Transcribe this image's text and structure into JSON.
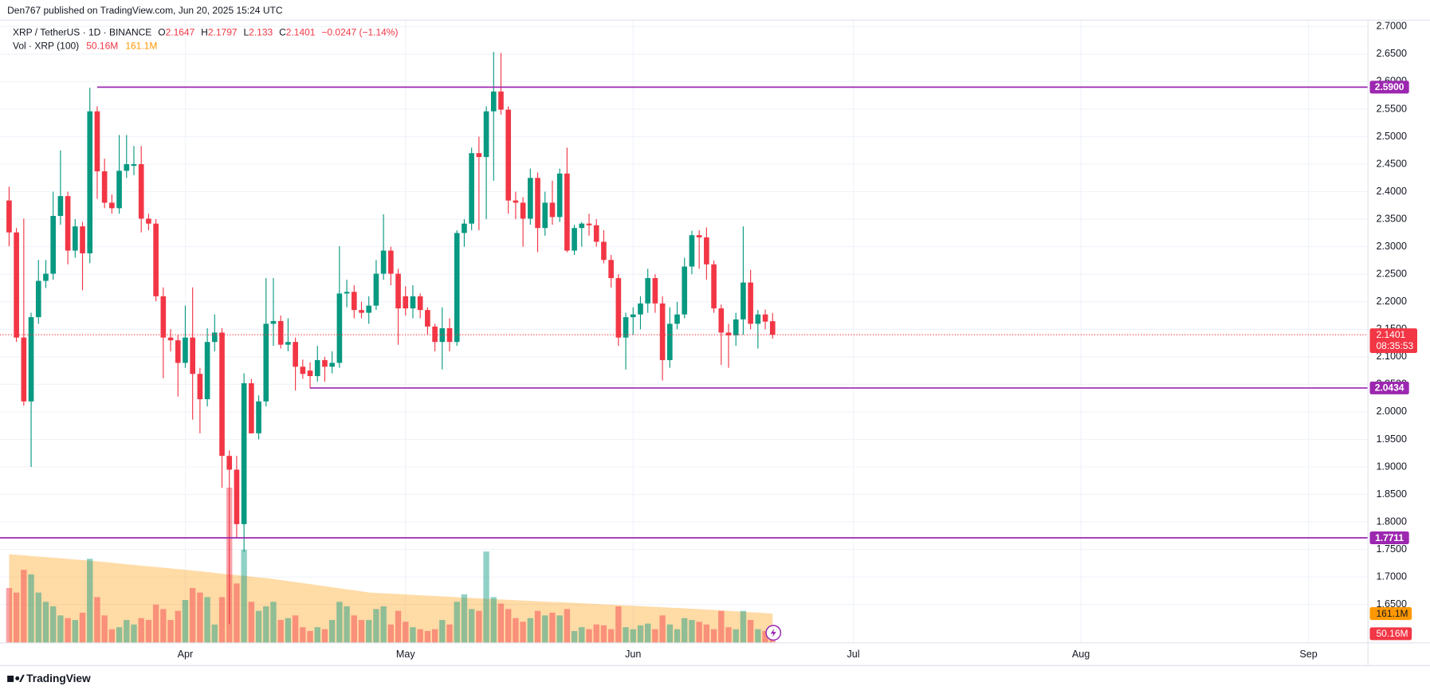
{
  "header": {
    "published": "Den767 published on TradingView.com, Jun 20, 2025 15:24 UTC",
    "brand": "TradingView"
  },
  "chart_data": {
    "type": "candlestick",
    "symbol": "XRP / TetherUS · 1D · BINANCE",
    "ohlc_keys": [
      "O",
      "H",
      "L",
      "C"
    ],
    "change": "−0.0247 (−1.14%)",
    "open": [
      2.384,
      2.326,
      2.135,
      2.019,
      2.172,
      2.238,
      2.251,
      2.356,
      2.392,
      2.293,
      2.337,
      2.288,
      2.546,
      2.437,
      2.38,
      2.37,
      2.438,
      2.447,
      2.45,
      2.351,
      2.342,
      2.21,
      2.135,
      2.13,
      2.089,
      2.135,
      2.069,
      2.023,
      2.127,
      2.144,
      1.92,
      1.895,
      1.796,
      2.052,
      1.961,
      2.019,
      2.16,
      2.165,
      2.122,
      2.127,
      2.082,
      2.075,
      2.065,
      2.094,
      2.082,
      2.089,
      2.215,
      2.218,
      2.185,
      2.18,
      2.193,
      2.251,
      2.293,
      2.251,
      2.21,
      2.188,
      2.21,
      2.185,
      2.155,
      2.127,
      2.152,
      2.127,
      2.325,
      2.342,
      2.47,
      2.463,
      2.546,
      2.582,
      2.549,
      2.384,
      2.38,
      2.351,
      2.425,
      2.334,
      2.38,
      2.354,
      2.433,
      2.293,
      2.334,
      2.342,
      2.339,
      2.309,
      2.276,
      2.243,
      2.135,
      2.172,
      2.177,
      2.197,
      2.243,
      2.197,
      2.094,
      2.16,
      2.177,
      2.264,
      2.321,
      2.317,
      2.268,
      2.188,
      2.144,
      2.139,
      2.168,
      2.235,
      2.16,
      2.177,
      2.1647
    ],
    "high": [
      2.409,
      2.334,
      2.351,
      2.18,
      2.276,
      2.276,
      2.4,
      2.475,
      2.4,
      2.35,
      2.345,
      2.589,
      2.555,
      2.46,
      2.395,
      2.503,
      2.503,
      2.483,
      2.483,
      2.36,
      2.35,
      2.226,
      2.15,
      2.14,
      2.193,
      2.226,
      2.08,
      2.152,
      2.177,
      2.152,
      1.93,
      1.92,
      2.07,
      2.06,
      2.03,
      2.243,
      2.243,
      2.175,
      2.17,
      2.135,
      2.095,
      2.09,
      2.12,
      2.1,
      2.11,
      2.301,
      2.24,
      2.23,
      2.2,
      2.21,
      2.276,
      2.359,
      2.3,
      2.26,
      2.228,
      2.23,
      2.215,
      2.19,
      2.16,
      2.19,
      2.17,
      2.33,
      2.35,
      2.48,
      2.5,
      2.555,
      2.654,
      2.652,
      2.555,
      2.4,
      2.39,
      2.442,
      2.435,
      2.4,
      2.42,
      2.442,
      2.48,
      2.34,
      2.345,
      2.36,
      2.35,
      2.33,
      2.285,
      2.25,
      2.18,
      2.19,
      2.21,
      2.26,
      2.25,
      2.21,
      2.19,
      2.2,
      2.28,
      2.329,
      2.33,
      2.335,
      2.275,
      2.195,
      2.16,
      2.18,
      2.337,
      2.258,
      2.185,
      2.186,
      2.1797
    ],
    "low": [
      2.301,
      2.127,
      2.011,
      1.9,
      2.16,
      2.225,
      2.24,
      2.34,
      2.268,
      2.28,
      2.221,
      2.27,
      2.387,
      2.37,
      2.36,
      2.36,
      2.425,
      2.43,
      2.326,
      2.33,
      2.201,
      2.061,
      2.11,
      2.028,
      2.08,
      1.986,
      1.961,
      2.01,
      2.11,
      1.862,
      1.614,
      1.771,
      1.746,
      1.961,
      1.95,
      2.01,
      2.12,
      2.115,
      2.11,
      2.039,
      2.06,
      2.043,
      2.055,
      2.055,
      2.07,
      2.08,
      2.19,
      2.17,
      2.17,
      2.16,
      2.185,
      2.24,
      2.23,
      2.122,
      2.175,
      2.17,
      2.17,
      2.14,
      2.11,
      2.077,
      2.11,
      2.12,
      2.3,
      2.33,
      2.33,
      2.35,
      2.42,
      2.54,
      2.36,
      2.35,
      2.3,
      2.34,
      2.29,
      2.32,
      2.34,
      2.345,
      2.29,
      2.285,
      2.3,
      2.32,
      2.3,
      2.27,
      2.226,
      2.12,
      2.077,
      2.14,
      2.15,
      2.18,
      2.18,
      2.057,
      2.08,
      2.15,
      2.17,
      2.25,
      2.26,
      2.24,
      2.18,
      2.085,
      2.08,
      2.12,
      2.14,
      2.15,
      2.115,
      2.15,
      2.133
    ],
    "close": [
      2.326,
      2.135,
      2.019,
      2.172,
      2.238,
      2.251,
      2.356,
      2.392,
      2.293,
      2.337,
      2.288,
      2.546,
      2.437,
      2.38,
      2.37,
      2.438,
      2.45,
      2.45,
      2.351,
      2.342,
      2.21,
      2.135,
      2.13,
      2.089,
      2.135,
      2.069,
      2.023,
      2.127,
      2.144,
      1.92,
      1.895,
      1.796,
      2.052,
      1.961,
      2.019,
      2.16,
      2.165,
      2.122,
      2.127,
      2.082,
      2.069,
      2.065,
      2.094,
      2.082,
      2.089,
      2.215,
      2.218,
      2.185,
      2.18,
      2.193,
      2.251,
      2.293,
      2.251,
      2.188,
      2.188,
      2.21,
      2.185,
      2.155,
      2.127,
      2.152,
      2.127,
      2.325,
      2.342,
      2.47,
      2.463,
      2.546,
      2.582,
      2.549,
      2.384,
      2.38,
      2.351,
      2.425,
      2.334,
      2.38,
      2.354,
      2.433,
      2.293,
      2.334,
      2.342,
      2.339,
      2.309,
      2.276,
      2.243,
      2.135,
      2.172,
      2.177,
      2.197,
      2.243,
      2.197,
      2.094,
      2.16,
      2.177,
      2.264,
      2.321,
      2.317,
      2.268,
      2.188,
      2.144,
      2.139,
      2.168,
      2.235,
      2.16,
      2.177,
      2.164,
      2.1401
    ],
    "up_color": "#089981",
    "down_color": "#f23645",
    "xlim": [
      -1.24,
      185.1
    ],
    "xticks": [
      {
        "value": 24,
        "label": "Apr"
      },
      {
        "value": 54,
        "label": "May"
      },
      {
        "value": 85,
        "label": "Jun"
      },
      {
        "value": 115,
        "label": "Jul"
      },
      {
        "value": 146,
        "label": "Aug"
      },
      {
        "value": 177,
        "label": "Sep"
      }
    ],
    "ylim": [
      1.5804,
      2.7116
    ],
    "yticks": [
      {
        "value": 1.65,
        "label": "1.6500"
      },
      {
        "value": 1.7,
        "label": "1.7000"
      },
      {
        "value": 1.75,
        "label": "1.7500"
      },
      {
        "value": 1.8,
        "label": "1.8000"
      },
      {
        "value": 1.85,
        "label": "1.8500"
      },
      {
        "value": 1.9,
        "label": "1.9000"
      },
      {
        "value": 1.95,
        "label": "1.9500"
      },
      {
        "value": 2.0,
        "label": "2.0000"
      },
      {
        "value": 2.05,
        "label": "2.0500"
      },
      {
        "value": 2.1,
        "label": "2.1000"
      },
      {
        "value": 2.15,
        "label": "2.1500"
      },
      {
        "value": 2.2,
        "label": "2.2000"
      },
      {
        "value": 2.25,
        "label": "2.2500"
      },
      {
        "value": 2.3,
        "label": "2.3000"
      },
      {
        "value": 2.35,
        "label": "2.3500"
      },
      {
        "value": 2.4,
        "label": "2.4000"
      },
      {
        "value": 2.45,
        "label": "2.4500"
      },
      {
        "value": 2.5,
        "label": "2.5000"
      },
      {
        "value": 2.55,
        "label": "2.5500"
      },
      {
        "value": 2.6,
        "label": "2.6000"
      },
      {
        "value": 2.65,
        "label": "2.6500"
      },
      {
        "value": 2.7,
        "label": "2.7000"
      }
    ],
    "grid": true,
    "countdown": "08:35:53",
    "levels": [
      {
        "value": 2.59,
        "label": "2.5900",
        "x0": 12,
        "color": "#9c27b0"
      },
      {
        "value": 2.0434,
        "x0": 41,
        "color": "#9c27b0"
      },
      {
        "value": 1.7711,
        "x0": -1.24,
        "color": "#9c27b0"
      }
    ],
    "volume": {
      "name": "Vol · XRP (100)",
      "values": [
        302,
        277,
        402,
        377,
        277,
        226,
        201,
        151,
        136,
        126,
        166,
        463,
        252,
        151,
        75,
        86,
        126,
        101,
        136,
        126,
        211,
        186,
        126,
        176,
        236,
        302,
        277,
        252,
        101,
        252,
        855,
        327,
        513,
        226,
        176,
        201,
        226,
        126,
        136,
        151,
        86,
        65,
        86,
        75,
        126,
        226,
        201,
        151,
        126,
        126,
        186,
        201,
        101,
        176,
        116,
        86,
        75,
        65,
        75,
        126,
        101,
        226,
        267,
        186,
        176,
        503,
        252,
        216,
        186,
        136,
        116,
        136,
        176,
        151,
        166,
        151,
        186,
        65,
        86,
        75,
        101,
        96,
        75,
        201,
        86,
        75,
        96,
        106,
        75,
        151,
        101,
        75,
        136,
        126,
        116,
        101,
        75,
        176,
        86,
        75,
        176,
        126,
        75,
        65,
        50.16
      ],
      "last_label": "50.16M",
      "ma_values": [
        488,
        485,
        482,
        478,
        475,
        472,
        469,
        466,
        462,
        459,
        456,
        453,
        449,
        445,
        441,
        437,
        433,
        429,
        425,
        421,
        418,
        414,
        410,
        406,
        402,
        398,
        394,
        390,
        385,
        381,
        377,
        373,
        369,
        365,
        360,
        356,
        352,
        346,
        340,
        335,
        329,
        323,
        317,
        312,
        306,
        300,
        294,
        289,
        283,
        277,
        275,
        273,
        271,
        269,
        266,
        264,
        262,
        260,
        258,
        256,
        254,
        251,
        249,
        247,
        245,
        243,
        241,
        239,
        237,
        235,
        233,
        231,
        229,
        227,
        225,
        224,
        222,
        220,
        218,
        216,
        214,
        212,
        210,
        208,
        206,
        204,
        202,
        200,
        198,
        196,
        194,
        192,
        190,
        188,
        186,
        183.5,
        181,
        178.5,
        176,
        173.6,
        171.1,
        168.6,
        166.1,
        163.6,
        161.1
      ],
      "ma_last_label": "161.1M",
      "ma_color": "#ff9800",
      "ylim": [
        0,
        3430
      ]
    }
  }
}
